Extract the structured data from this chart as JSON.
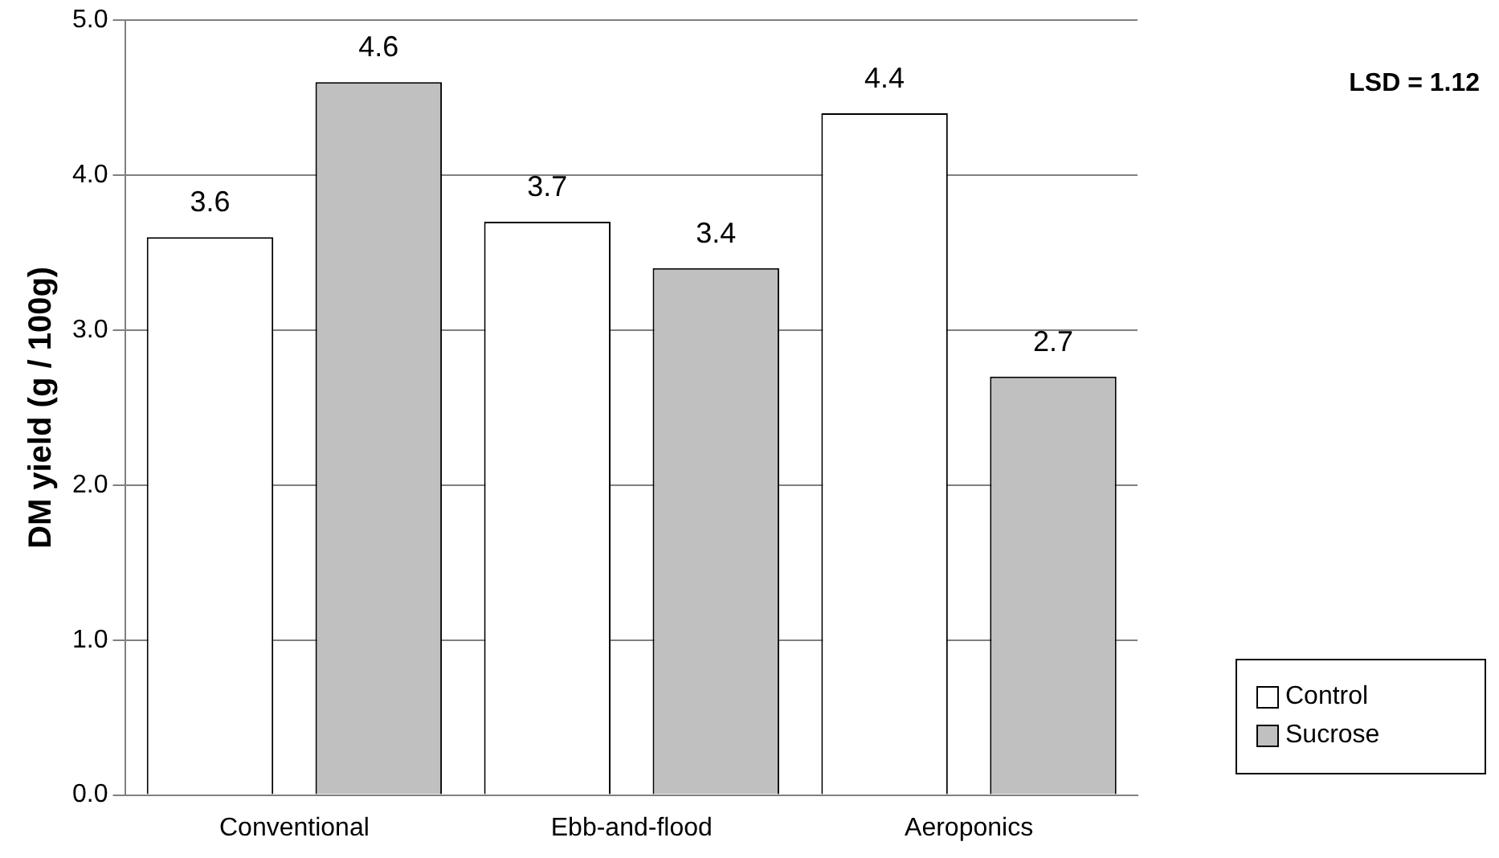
{
  "chart_data": {
    "type": "bar",
    "ylabel": "DM yield (g / 100g)",
    "categories": [
      "Conventional",
      "Ebb-and-flood",
      "Aeroponics"
    ],
    "series": [
      {
        "name": "Control",
        "color": "#ffffff",
        "values": [
          3.6,
          3.7,
          4.4
        ]
      },
      {
        "name": "Sucrose",
        "color": "#c0c0c0",
        "values": [
          4.6,
          3.4,
          2.7
        ]
      }
    ],
    "ylim": [
      0,
      5
    ],
    "yticks": [
      {
        "value": 0,
        "label": "0.0"
      },
      {
        "value": 1,
        "label": "1.0"
      },
      {
        "value": 2,
        "label": "2.0"
      },
      {
        "value": 3,
        "label": "3.0"
      },
      {
        "value": 4,
        "label": "4.0"
      },
      {
        "value": 5,
        "label": "5.0"
      }
    ],
    "grid": "y",
    "legend": "bottom right",
    "data_labels": true,
    "annotations": [
      "LSD = 1.12"
    ]
  }
}
